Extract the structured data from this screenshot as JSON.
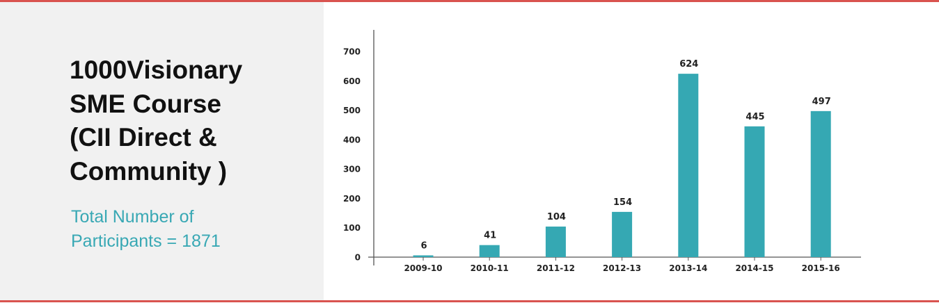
{
  "panel": {
    "title_lines": [
      "1000Visionary",
      "SME Course",
      "(CII Direct &",
      "Community )"
    ],
    "subtitle_lines": [
      "Total Number of",
      "Participants = 1871"
    ]
  },
  "colors": {
    "bar": "#35a8b3",
    "accent_rule": "#d9534f",
    "subtitle": "#38a8b4",
    "panel_bg": "#f1f1f1"
  },
  "chart_data": {
    "type": "bar",
    "categories": [
      "2009-10",
      "2010-11",
      "2011-12",
      "2012-13",
      "2013-14",
      "2014-15",
      "2015-16"
    ],
    "values": [
      6,
      41,
      104,
      154,
      624,
      445,
      497
    ],
    "value_labels": [
      "6",
      "41",
      "104",
      "154",
      "624",
      "445",
      "497"
    ],
    "y_ticks": [
      0,
      100,
      200,
      300,
      400,
      500,
      600,
      700
    ],
    "ylim": [
      0,
      700
    ],
    "grid": false,
    "legend": "none"
  }
}
